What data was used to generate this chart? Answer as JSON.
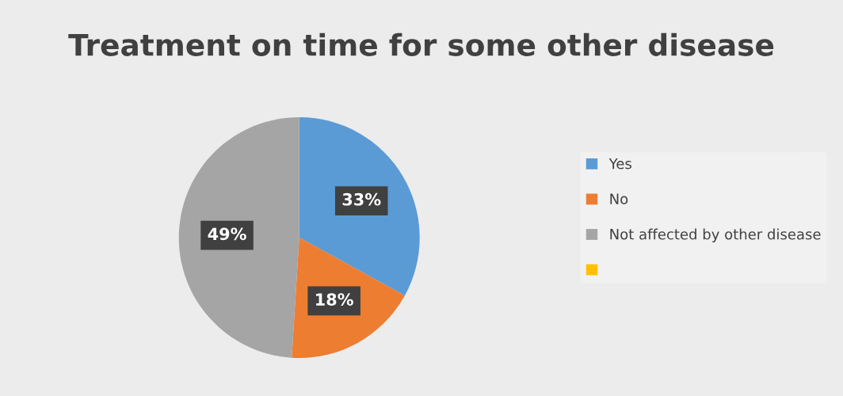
{
  "chart_data": {
    "type": "pie",
    "title": "Treatment on time for some other disease",
    "categories": [
      "Yes",
      "No",
      "Not affected by other disease",
      null
    ],
    "values": [
      33,
      18,
      49,
      0
    ],
    "colors": [
      "#5b9bd5",
      "#ed7d31",
      "#a5a5a5",
      "#ffc000"
    ],
    "value_labels": [
      "33%",
      "18%",
      "49%",
      null
    ],
    "legend": "right"
  }
}
